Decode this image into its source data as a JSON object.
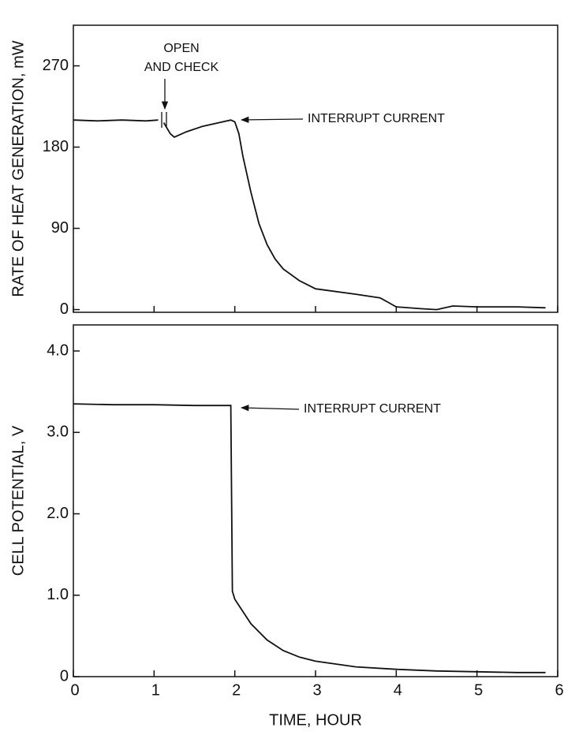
{
  "chart_data": [
    {
      "type": "line",
      "ylabel": "RATE OF HEAT GENERATION, mW",
      "x": [
        0,
        0.3,
        0.6,
        0.9,
        1.05,
        1.08,
        1.12,
        1.2,
        1.25,
        1.4,
        1.6,
        1.8,
        1.95,
        2.0,
        2.05,
        2.1,
        2.2,
        2.3,
        2.4,
        2.5,
        2.6,
        2.8,
        3.0,
        3.5,
        3.8,
        3.9,
        4.0,
        4.3,
        4.5,
        4.7,
        5.0,
        5.5,
        5.85
      ],
      "values": [
        210,
        209,
        210,
        209,
        210,
        null,
        207,
        195,
        191,
        197,
        203,
        207,
        210,
        208,
        195,
        170,
        130,
        95,
        72,
        56,
        45,
        32,
        23,
        17,
        13,
        8,
        3,
        1,
        0,
        4,
        3,
        3,
        2
      ],
      "color": "#111111",
      "xlim": [
        0,
        6
      ],
      "xticks": [
        0,
        1,
        2,
        3,
        4,
        5,
        6
      ],
      "show_xtick_labels": false,
      "ylim": [
        -3,
        315
      ],
      "yticks": [
        0,
        90,
        180,
        270
      ],
      "annotations": [
        "OPEN",
        "AND CHECK",
        "INTERRUPT CURRENT"
      ]
    },
    {
      "type": "line",
      "ylabel": "CELL POTENTIAL, V",
      "xlabel": "TIME, HOUR",
      "x": [
        0,
        0.5,
        1.0,
        1.5,
        1.95,
        1.97,
        2.0,
        2.2,
        2.4,
        2.6,
        2.8,
        3.0,
        3.5,
        4.0,
        4.5,
        5.0,
        5.5,
        5.85
      ],
      "values": [
        3.35,
        3.34,
        3.34,
        3.33,
        3.33,
        1.05,
        0.95,
        0.65,
        0.45,
        0.32,
        0.24,
        0.19,
        0.12,
        0.09,
        0.07,
        0.06,
        0.05,
        0.05
      ],
      "color": "#111111",
      "xlim": [
        0,
        6
      ],
      "xticks": [
        0,
        1,
        2,
        3,
        4,
        5,
        6
      ],
      "show_xtick_labels": true,
      "ylim": [
        0,
        4.32
      ],
      "yticks": [
        0,
        {
          "value": 1,
          "label": "1.0"
        },
        {
          "value": 2,
          "label": "2.0"
        },
        {
          "value": 3,
          "label": "3.0"
        },
        {
          "value": 4,
          "label": "4.0"
        }
      ],
      "annotations": [
        "INTERRUPT CURRENT"
      ]
    }
  ]
}
